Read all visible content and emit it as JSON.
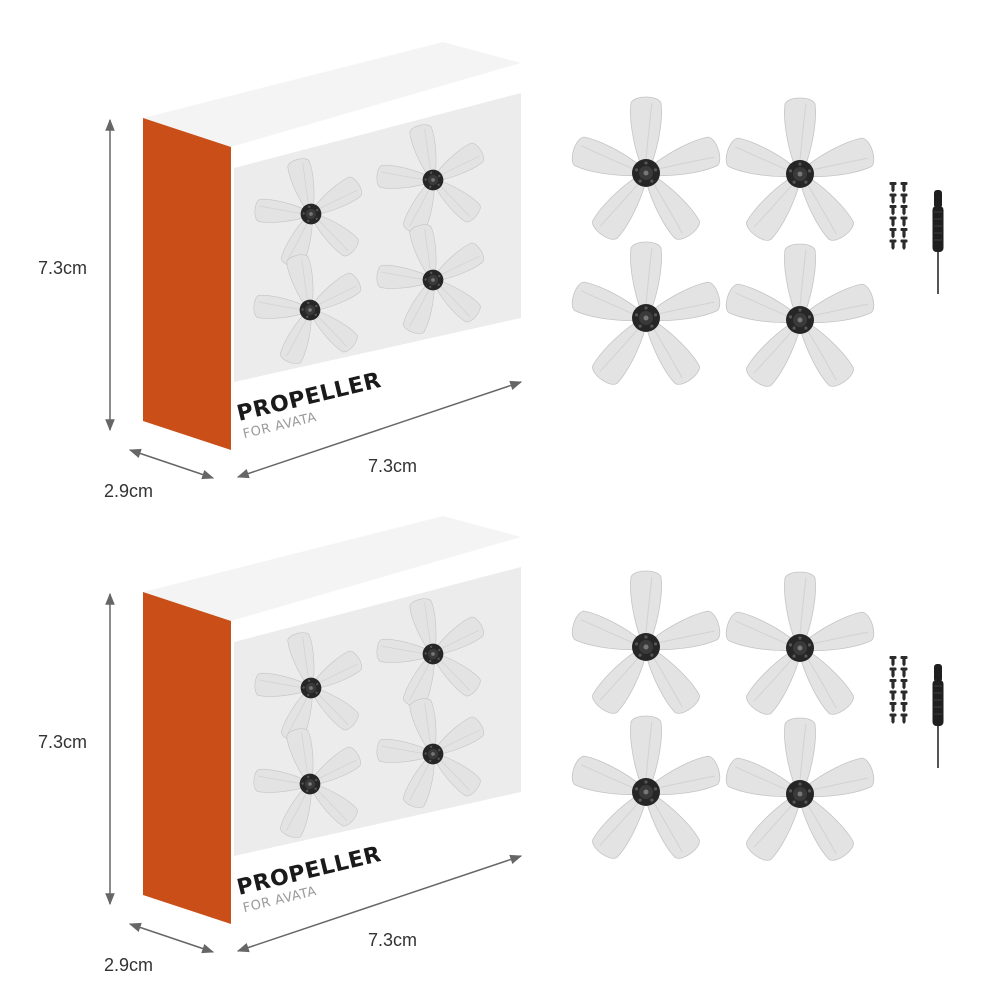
{
  "colors": {
    "box_side": "#c94e17",
    "box_front": "#ffffff",
    "box_window": "#ececec",
    "box_top": "#f4f4f4",
    "blade": "#e3e3e3",
    "blade_stroke": "#c4c4c4",
    "hub": "#262626",
    "arrow": "#666666",
    "screw": "#2b2b2b",
    "screwdriver": "#1f1f1f"
  },
  "icons": {
    "propeller": "propeller-icon",
    "screw": "screw-icon",
    "screwdriver": "screwdriver-icon"
  },
  "packages": [
    {
      "box": {
        "brand_title": "PROPELLER",
        "brand_subtitle": "FOR AVATA"
      },
      "dimensions": {
        "height_label": "7.3cm",
        "width_label": "7.3cm",
        "depth_label": "2.9cm"
      },
      "propeller_count": 4,
      "screw_count": 12
    },
    {
      "box": {
        "brand_title": "PROPELLER",
        "brand_subtitle": "FOR AVATA"
      },
      "dimensions": {
        "height_label": "7.3cm",
        "width_label": "7.3cm",
        "depth_label": "2.9cm"
      },
      "propeller_count": 4,
      "screw_count": 12
    }
  ]
}
